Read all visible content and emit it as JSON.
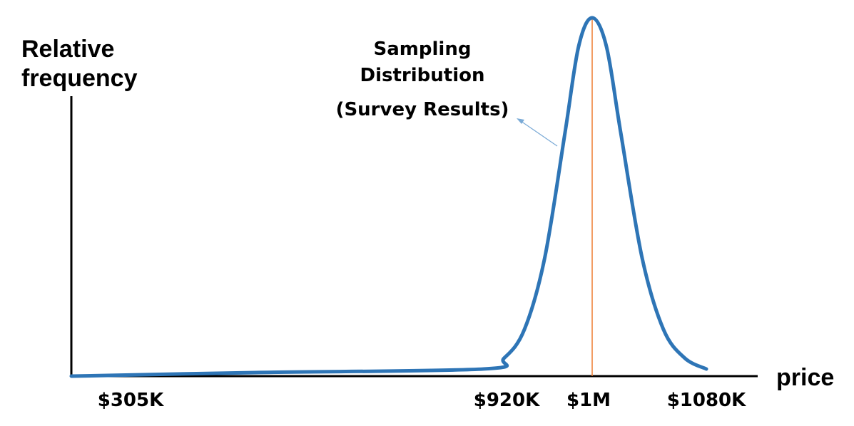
{
  "chart_data": {
    "type": "line",
    "ylabel_lines": [
      "Relative",
      "frequency"
    ],
    "xlabel": "price",
    "tick_labels": [
      "$305K",
      "$920K",
      "$1M",
      "$1080K"
    ],
    "tick_values": [
      305,
      920,
      1000,
      1080
    ],
    "annotation_lines": [
      "Sampling",
      "Distribution",
      "(Survey Results)"
    ],
    "mean_marker": {
      "x": 1000,
      "color": "#ed7d31"
    },
    "series": [
      {
        "color": "#2e75b6",
        "points": [
          [
            305,
            0.0
          ],
          [
            580,
            0.01
          ],
          [
            920,
            0.02
          ],
          [
            935,
            0.05
          ],
          [
            950,
            0.13
          ],
          [
            965,
            0.33
          ],
          [
            980,
            0.68
          ],
          [
            990,
            0.92
          ],
          [
            1000,
            1.0
          ],
          [
            1010,
            0.92
          ],
          [
            1020,
            0.68
          ],
          [
            1035,
            0.33
          ],
          [
            1050,
            0.13
          ],
          [
            1065,
            0.05
          ],
          [
            1080,
            0.02
          ]
        ]
      }
    ],
    "xlim": [
      265,
      1080
    ],
    "ylim": [
      0,
      1
    ]
  }
}
